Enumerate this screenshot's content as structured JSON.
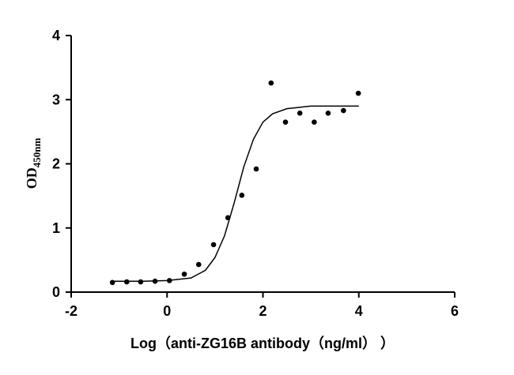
{
  "chart_data": {
    "type": "scatter",
    "x_label": "Log（anti-ZG16B antibody（ng/ml）  ）",
    "y_label": "OD",
    "y_label_sub": "450nm",
    "points": {
      "color": "#000000",
      "x": [
        -1.14,
        -0.84,
        -0.55,
        -0.25,
        0.05,
        0.36,
        0.66,
        0.97,
        1.27,
        1.56,
        1.86,
        2.17,
        2.47,
        2.77,
        3.07,
        3.36,
        3.68,
        3.99
      ],
      "values": [
        0.15,
        0.16,
        0.16,
        0.17,
        0.18,
        0.28,
        0.43,
        0.74,
        1.16,
        1.51,
        1.92,
        3.26,
        2.65,
        2.79,
        2.65,
        2.79,
        2.83,
        3.1
      ]
    },
    "fit": {
      "color": "#000000",
      "x": [
        -1.1,
        -0.5,
        0,
        0.5,
        0.8,
        1.0,
        1.2,
        1.4,
        1.6,
        1.8,
        2.0,
        2.2,
        2.5,
        3.0,
        4.0
      ],
      "values": [
        0.17,
        0.17,
        0.18,
        0.22,
        0.34,
        0.54,
        0.88,
        1.39,
        1.95,
        2.38,
        2.65,
        2.78,
        2.86,
        2.9,
        2.9
      ]
    },
    "xlim": [
      -2,
      6
    ],
    "xticks": [
      -2,
      0,
      2,
      4,
      6
    ],
    "ylim": [
      0,
      4
    ],
    "yticks": [
      0,
      1,
      2,
      3,
      4
    ],
    "grid": false
  }
}
